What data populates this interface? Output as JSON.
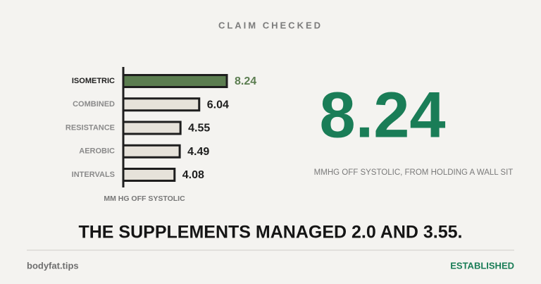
{
  "header": {
    "title": "CLAIM CHECKED"
  },
  "chart_data": {
    "type": "bar",
    "orientation": "horizontal",
    "categories": [
      "ISOMETRIC",
      "COMBINED",
      "RESISTANCE",
      "AEROBIC",
      "INTERVALS"
    ],
    "values": [
      8.24,
      6.04,
      4.55,
      4.49,
      4.08
    ],
    "colors": [
      "#5b7d50",
      "#e6e2da",
      "#e6e2da",
      "#e6e2da",
      "#e6e2da"
    ],
    "label_colors": [
      "#5b7d50",
      "#1e1e1e",
      "#1e1e1e",
      "#1e1e1e",
      "#1e1e1e"
    ],
    "category_colors": [
      "#1e1e1e",
      "#8a8a8a",
      "#8a8a8a",
      "#8a8a8a",
      "#8a8a8a"
    ],
    "xlabel": "MM HG OFF SYSTOLIC"
  },
  "stat": {
    "value": "8.24",
    "caption": "MMHG OFF SYSTOLIC, FROM HOLDING A WALL SIT"
  },
  "headline": "THE SUPPLEMENTS MANAGED 2.0 AND 3.55.",
  "footer": {
    "site": "bodyfat.tips",
    "status": "ESTABLISHED"
  }
}
